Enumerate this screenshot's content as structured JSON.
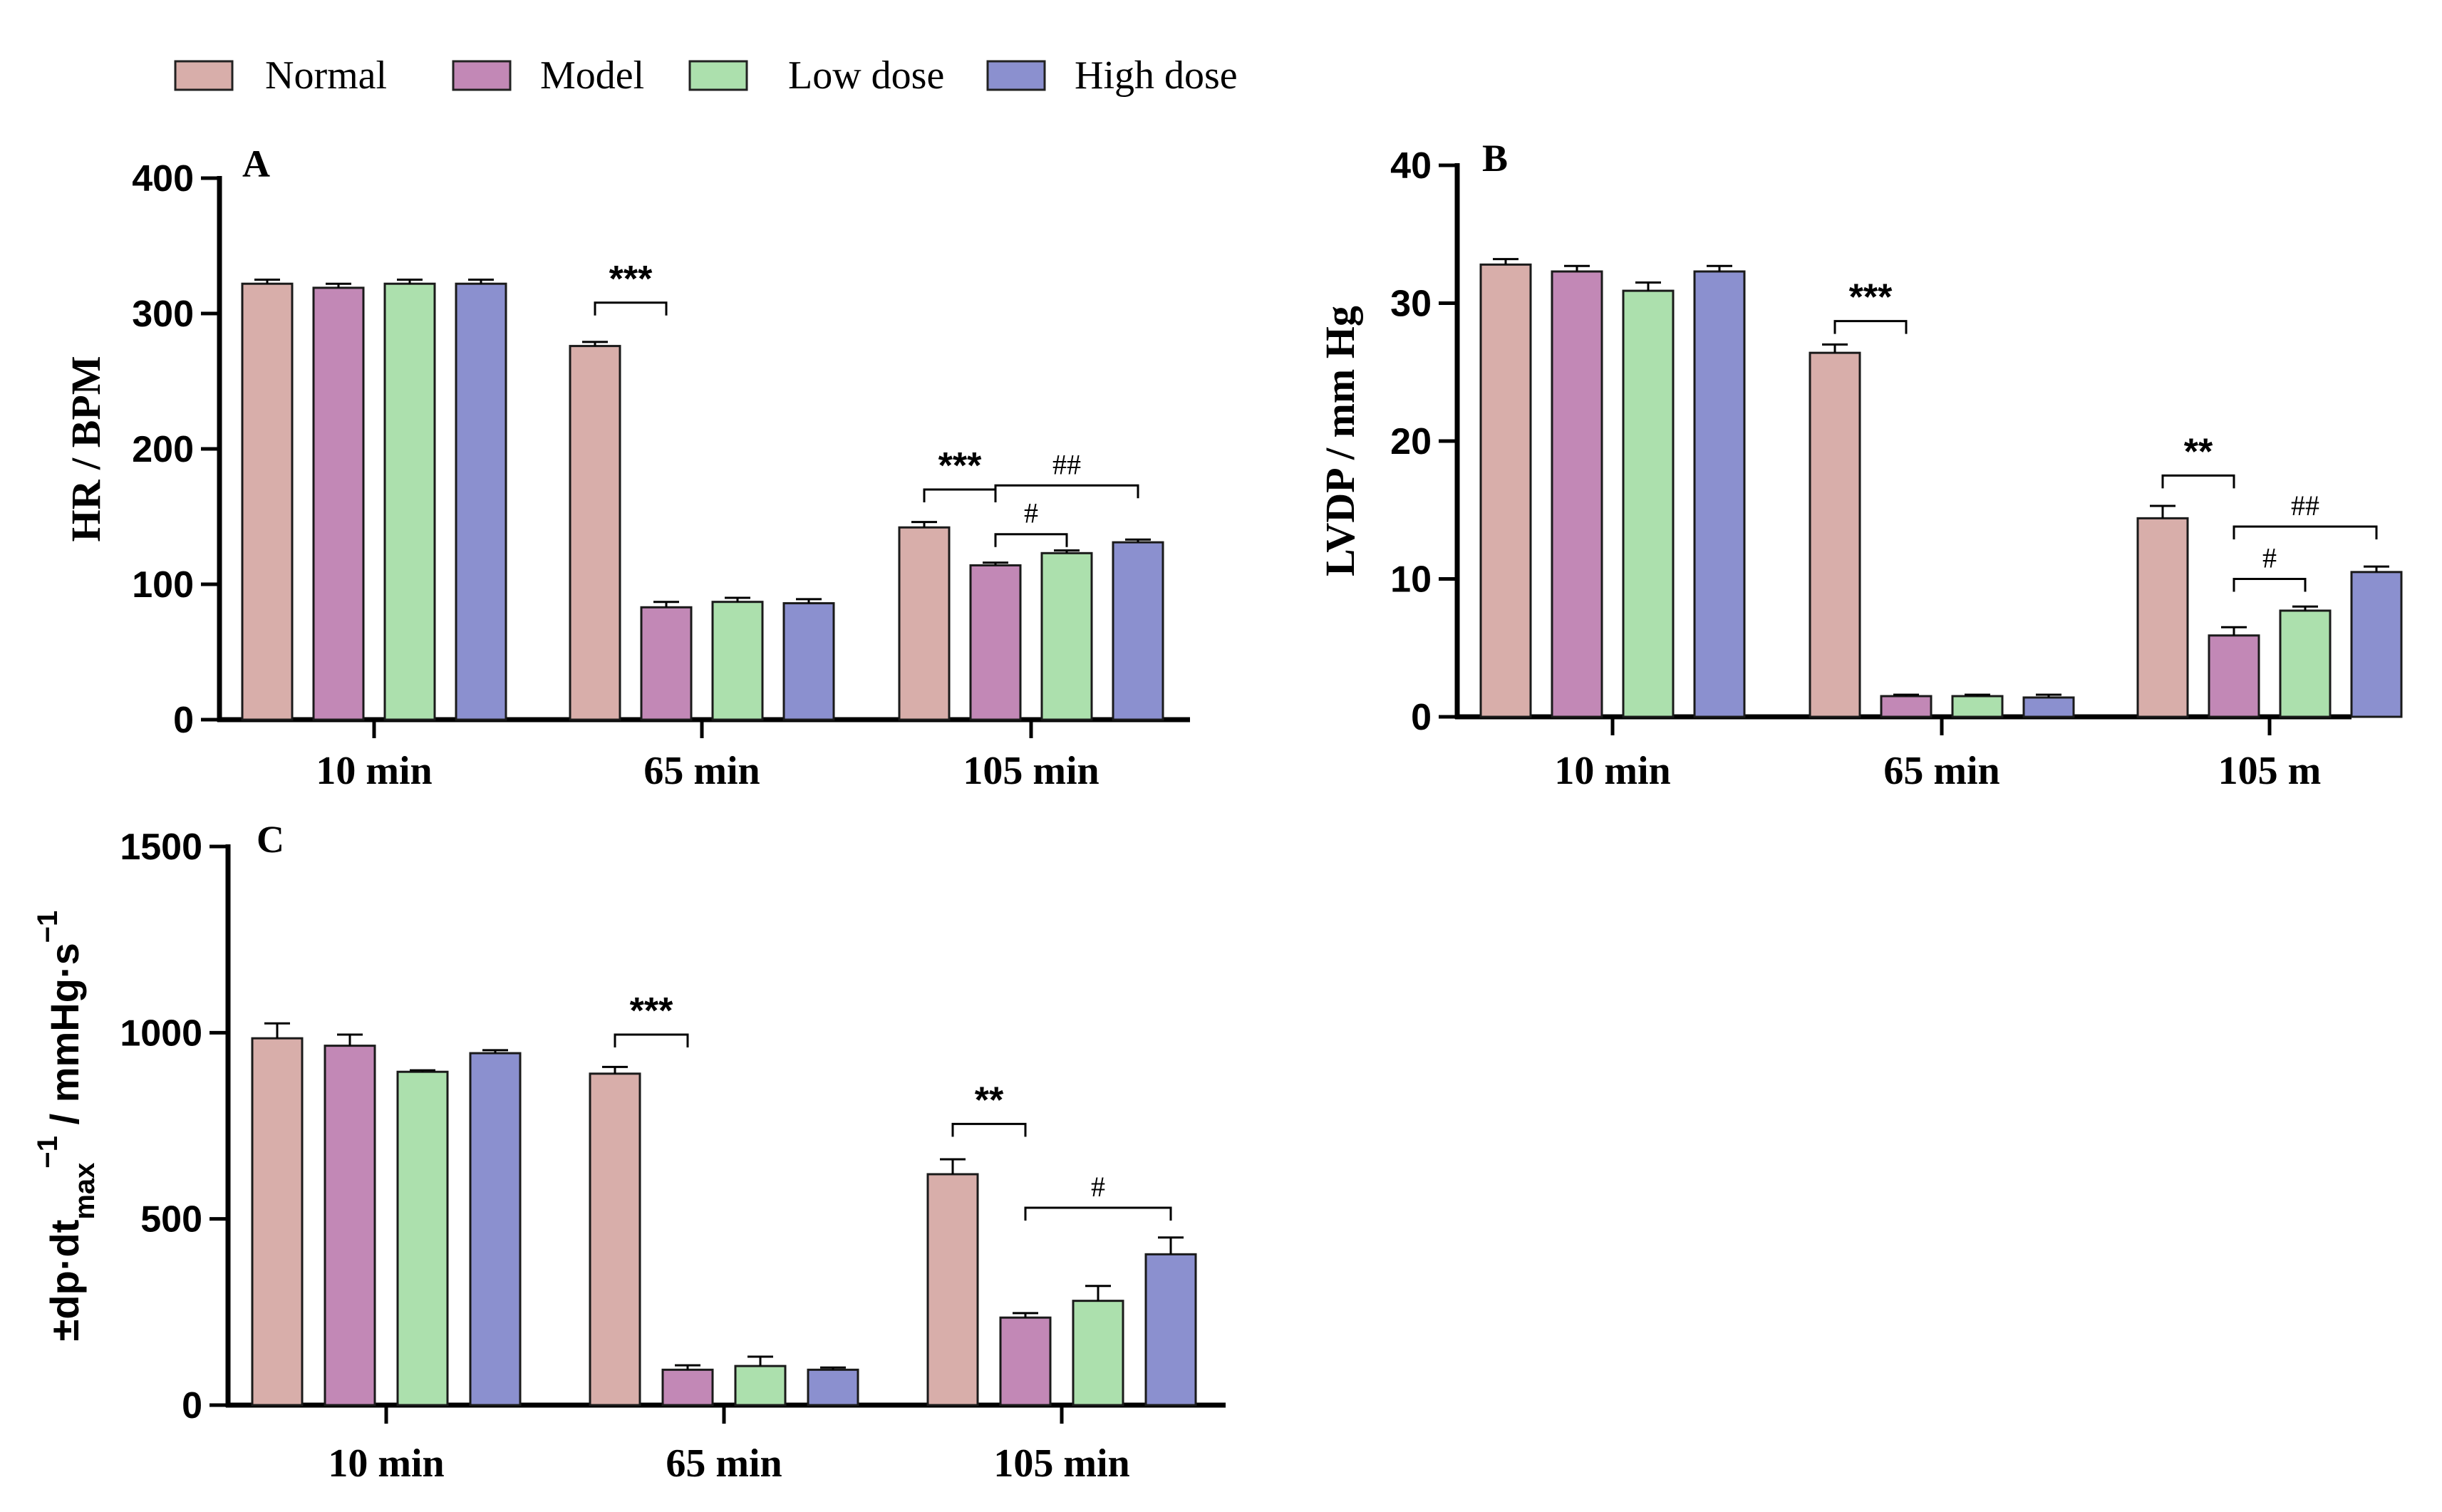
{
  "legend": [
    {
      "label": "Normal",
      "color": "#d8aeaa"
    },
    {
      "label": "Model",
      "color": "#c288b6"
    },
    {
      "label": "Low dose",
      "color": "#ace0ad"
    },
    {
      "label": "High dose",
      "color": "#8b90cf"
    }
  ],
  "chart_data": [
    {
      "panel": "A",
      "type": "bar",
      "ylabel": "HR / BPM",
      "ylim": [
        0,
        400
      ],
      "yticks": [
        0,
        100,
        200,
        300,
        400
      ],
      "categories": [
        "10 min",
        "65 min",
        "105 min"
      ],
      "series": [
        {
          "name": "Normal",
          "values": [
            322,
            276,
            142
          ],
          "errors": [
            3,
            3,
            4
          ]
        },
        {
          "name": "Model",
          "values": [
            319,
            83,
            114
          ],
          "errors": [
            3,
            4,
            2
          ]
        },
        {
          "name": "Low dose",
          "values": [
            322,
            87,
            123
          ],
          "errors": [
            3,
            3,
            2
          ]
        },
        {
          "name": "High dose",
          "values": [
            322,
            86,
            131
          ],
          "errors": [
            3,
            3,
            2
          ]
        }
      ],
      "annotations": [
        {
          "text": "***",
          "category": 1,
          "from": 0,
          "to": 1,
          "y": 308,
          "style": "sans"
        },
        {
          "text": "***",
          "category": 2,
          "from": 0,
          "to": 1,
          "y": 170,
          "style": "sans"
        },
        {
          "text": "##",
          "category": 2,
          "from": 1,
          "to": 3,
          "y": 173,
          "style": "serif"
        },
        {
          "text": "#",
          "category": 2,
          "from": 1,
          "to": 2,
          "y": 137,
          "style": "serif"
        }
      ]
    },
    {
      "panel": "B",
      "type": "bar",
      "ylabel": "LVDP / mm Hg",
      "ylim": [
        0,
        40
      ],
      "yticks": [
        0,
        10,
        20,
        30,
        40
      ],
      "categories": [
        "10 min",
        "65 min",
        "105 m"
      ],
      "series": [
        {
          "name": "Normal",
          "values": [
            32.8,
            26.4,
            14.4
          ],
          "errors": [
            0.4,
            0.6,
            0.9
          ]
        },
        {
          "name": "Model",
          "values": [
            32.3,
            1.5,
            5.9
          ],
          "errors": [
            0.4,
            0.1,
            0.6
          ]
        },
        {
          "name": "Low dose",
          "values": [
            30.9,
            1.5,
            7.7
          ],
          "errors": [
            0.6,
            0.1,
            0.3
          ]
        },
        {
          "name": "High dose",
          "values": [
            32.3,
            1.4,
            10.5
          ],
          "errors": [
            0.4,
            0.2,
            0.4
          ]
        }
      ],
      "annotations": [
        {
          "text": "***",
          "category": 1,
          "from": 0,
          "to": 1,
          "y": 28.7,
          "style": "sans"
        },
        {
          "text": "**",
          "category": 2,
          "from": 0,
          "to": 1,
          "y": 17.5,
          "style": "sans"
        },
        {
          "text": "##",
          "category": 2,
          "from": 1,
          "to": 3,
          "y": 13.8,
          "style": "serif"
        },
        {
          "text": "#",
          "category": 2,
          "from": 1,
          "to": 2,
          "y": 10.0,
          "style": "serif"
        }
      ]
    },
    {
      "panel": "C",
      "type": "bar",
      "ylabel_main": "±dp·dt",
      "ylabel_sub": "max",
      "ylabel_sup": "−1",
      "ylabel_unit": " / mmHg·s",
      "ylabel_unit_sup": "−1",
      "ylim": [
        0,
        1500
      ],
      "yticks": [
        0,
        500,
        1000,
        1500
      ],
      "categories": [
        "10 min",
        "65 min",
        "105 min"
      ],
      "series": [
        {
          "name": "Normal",
          "values": [
            985,
            890,
            620
          ],
          "errors": [
            40,
            18,
            40
          ]
        },
        {
          "name": "Model",
          "values": [
            965,
            95,
            235
          ],
          "errors": [
            30,
            12,
            12
          ]
        },
        {
          "name": "Low dose",
          "values": [
            895,
            105,
            280
          ],
          "errors": [
            4,
            25,
            40
          ]
        },
        {
          "name": "High dose",
          "values": [
            945,
            95,
            405
          ],
          "errors": [
            8,
            6,
            45
          ]
        }
      ],
      "annotations": [
        {
          "text": "***",
          "category": 1,
          "from": 0,
          "to": 1,
          "y": 995,
          "style": "sans"
        },
        {
          "text": "**",
          "category": 2,
          "from": 0,
          "to": 1,
          "y": 755,
          "style": "sans"
        },
        {
          "text": "#",
          "category": 2,
          "from": 1,
          "to": 3,
          "y": 530,
          "style": "serif"
        }
      ]
    }
  ]
}
